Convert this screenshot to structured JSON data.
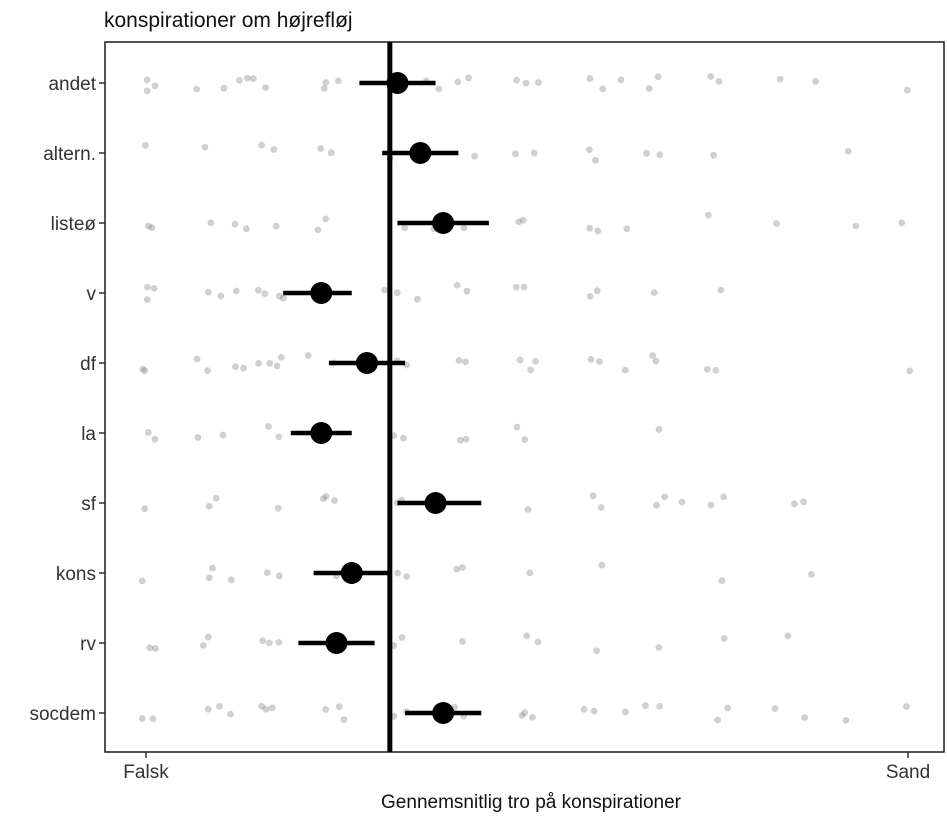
{
  "chart_data": {
    "type": "scatter",
    "title": "konspirationer om højrefløj",
    "xlabel": "Gennemsnitlig tro på konspirationer",
    "ylabel": "",
    "x_tick_labels": [
      "Falsk",
      "Sand"
    ],
    "xlim": [
      0,
      1
    ],
    "reference_line_x": 0.32,
    "grid": false,
    "categories": [
      "andet",
      "altern.",
      "listeø",
      "v",
      "df",
      "la",
      "sf",
      "kons",
      "rv",
      "socdem"
    ],
    "means": [
      {
        "category": "andet",
        "mean": 0.33,
        "ci_low": 0.28,
        "ci_high": 0.38
      },
      {
        "category": "altern.",
        "mean": 0.36,
        "ci_low": 0.31,
        "ci_high": 0.41
      },
      {
        "category": "listeø",
        "mean": 0.39,
        "ci_low": 0.33,
        "ci_high": 0.45
      },
      {
        "category": "v",
        "mean": 0.23,
        "ci_low": 0.18,
        "ci_high": 0.27
      },
      {
        "category": "df",
        "mean": 0.29,
        "ci_low": 0.24,
        "ci_high": 0.34
      },
      {
        "category": "la",
        "mean": 0.23,
        "ci_low": 0.19,
        "ci_high": 0.27
      },
      {
        "category": "sf",
        "mean": 0.38,
        "ci_low": 0.33,
        "ci_high": 0.44
      },
      {
        "category": "kons",
        "mean": 0.27,
        "ci_low": 0.22,
        "ci_high": 0.32
      },
      {
        "category": "rv",
        "mean": 0.25,
        "ci_low": 0.2,
        "ci_high": 0.3
      },
      {
        "category": "socdem",
        "mean": 0.39,
        "ci_low": 0.34,
        "ci_high": 0.44
      }
    ],
    "points": {
      "andet": [
        0.0,
        0.0,
        0.01,
        0.07,
        0.1,
        0.12,
        0.13,
        0.14,
        0.16,
        0.23,
        0.24,
        0.25,
        0.37,
        0.38,
        0.41,
        0.42,
        0.49,
        0.5,
        0.51,
        0.58,
        0.6,
        0.62,
        0.66,
        0.67,
        0.74,
        0.75,
        0.83,
        0.88,
        1.0
      ],
      "altern.": [
        0.0,
        0.08,
        0.15,
        0.17,
        0.23,
        0.24,
        0.32,
        0.43,
        0.49,
        0.51,
        0.58,
        0.59,
        0.66,
        0.67,
        0.75,
        0.92
      ],
      "listeø": [
        0.0,
        0.01,
        0.08,
        0.12,
        0.13,
        0.17,
        0.23,
        0.24,
        0.34,
        0.38,
        0.42,
        0.49,
        0.5,
        0.58,
        0.59,
        0.63,
        0.74,
        0.83,
        0.93,
        0.99
      ],
      "v": [
        0.0,
        0.0,
        0.01,
        0.08,
        0.1,
        0.12,
        0.15,
        0.16,
        0.17,
        0.18,
        0.31,
        0.33,
        0.36,
        0.41,
        0.42,
        0.49,
        0.5,
        0.58,
        0.59,
        0.67,
        0.75
      ],
      "df": [
        0.0,
        0.0,
        0.07,
        0.08,
        0.12,
        0.13,
        0.15,
        0.16,
        0.17,
        0.18,
        0.21,
        0.25,
        0.33,
        0.34,
        0.41,
        0.42,
        0.49,
        0.5,
        0.51,
        0.58,
        0.6,
        0.63,
        0.66,
        0.67,
        0.74,
        0.75,
        1.0
      ],
      "la": [
        0.0,
        0.01,
        0.07,
        0.1,
        0.16,
        0.17,
        0.33,
        0.34,
        0.41,
        0.42,
        0.49,
        0.5,
        0.67
      ],
      "sf": [
        0.0,
        0.08,
        0.09,
        0.17,
        0.23,
        0.24,
        0.25,
        0.33,
        0.34,
        0.5,
        0.59,
        0.6,
        0.67,
        0.68,
        0.7,
        0.74,
        0.76,
        0.85,
        0.86
      ],
      "kons": [
        0.0,
        0.08,
        0.09,
        0.11,
        0.16,
        0.17,
        0.25,
        0.33,
        0.34,
        0.41,
        0.42,
        0.5,
        0.6,
        0.76,
        0.87
      ],
      "rv": [
        0.0,
        0.01,
        0.07,
        0.08,
        0.15,
        0.16,
        0.17,
        0.33,
        0.34,
        0.41,
        0.5,
        0.51,
        0.59,
        0.67,
        0.76,
        0.84
      ],
      "socdem": [
        0.0,
        0.01,
        0.08,
        0.1,
        0.11,
        0.15,
        0.16,
        0.17,
        0.24,
        0.25,
        0.26,
        0.33,
        0.34,
        0.41,
        0.42,
        0.49,
        0.5,
        0.51,
        0.58,
        0.59,
        0.63,
        0.66,
        0.67,
        0.75,
        0.76,
        0.83,
        0.86,
        0.92,
        1.0
      ]
    }
  }
}
